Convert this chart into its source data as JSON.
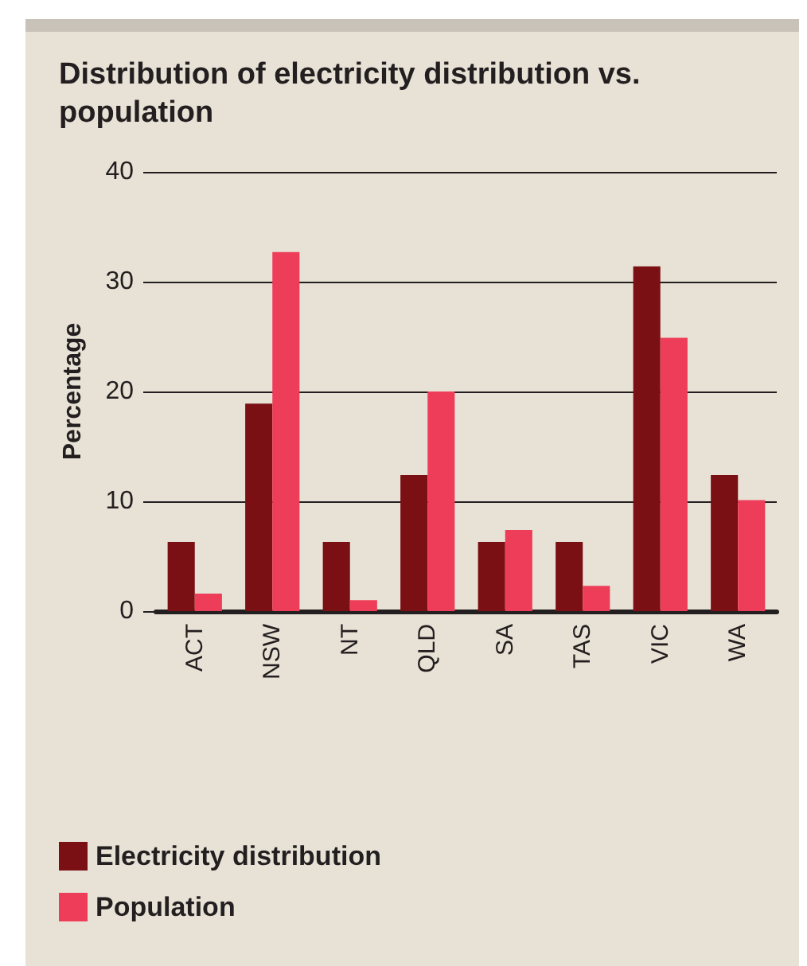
{
  "chart_data": {
    "type": "bar",
    "title": "Distribution of electricity distribution vs. population",
    "ylabel": "Percentage",
    "categories": [
      "ACT",
      "NSW",
      "NT",
      "QLD",
      "SA",
      "TAS",
      "VIC",
      "WA"
    ],
    "series": [
      {
        "name": "Electricity distribution",
        "color": "#7a1014",
        "values": [
          6.3,
          18.9,
          6.3,
          12.4,
          6.3,
          6.3,
          31.4,
          12.4
        ]
      },
      {
        "name": "Population",
        "color": "#ee3d58",
        "values": [
          1.6,
          32.7,
          1.0,
          20.0,
          7.4,
          2.3,
          24.9,
          10.1
        ]
      }
    ],
    "ylim": [
      0,
      40
    ],
    "yticks": [
      0,
      10,
      20,
      30,
      40
    ],
    "grid": "y",
    "legend": "bottom"
  }
}
